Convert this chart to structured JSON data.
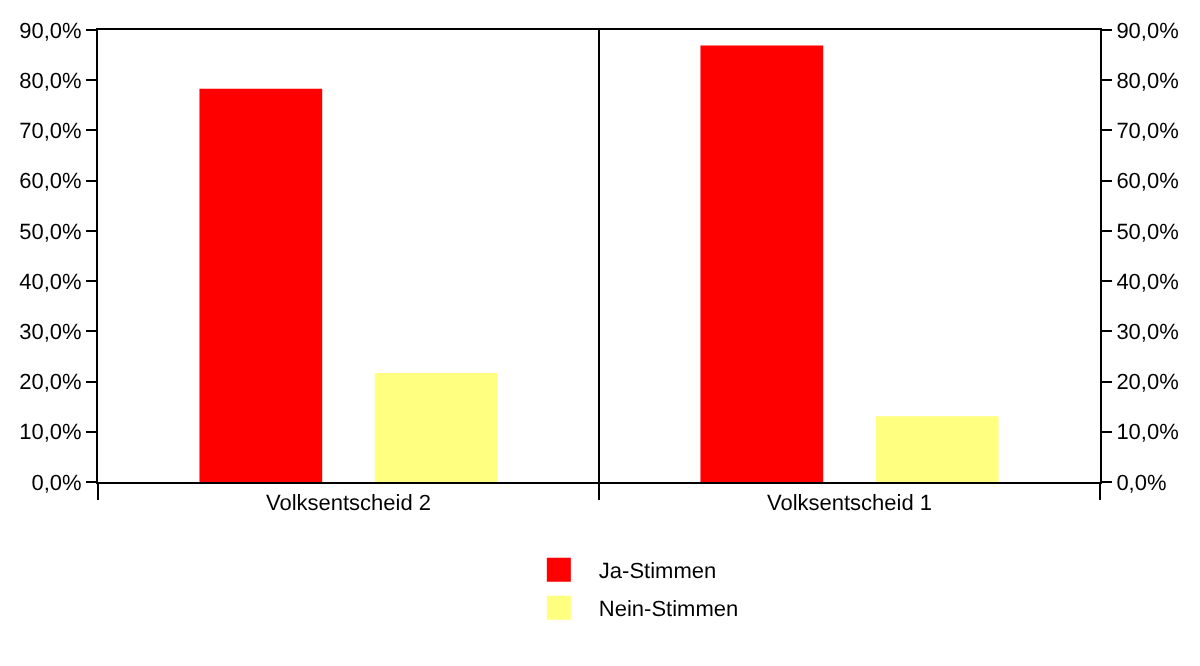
{
  "chart_data": {
    "type": "bar",
    "categories": [
      "Volksentscheid 2",
      "Volksentscheid 1"
    ],
    "series": [
      {
        "name": "Ja-Stimmen",
        "color": "#ff0000",
        "values": [
          78.3,
          86.9
        ]
      },
      {
        "name": "Nein-Stimmen",
        "color": "#ffff80",
        "values": [
          21.7,
          13.1
        ]
      }
    ],
    "ylim": [
      0,
      90
    ],
    "yticks": [
      {
        "value": 0,
        "label": "0,0%"
      },
      {
        "value": 10,
        "label": "10,0%"
      },
      {
        "value": 20,
        "label": "20,0%"
      },
      {
        "value": 30,
        "label": "30,0%"
      },
      {
        "value": 40,
        "label": "40,0%"
      },
      {
        "value": 50,
        "label": "50,0%"
      },
      {
        "value": 60,
        "label": "60,0%"
      },
      {
        "value": 70,
        "label": "70,0%"
      },
      {
        "value": 80,
        "label": "80,0%"
      },
      {
        "value": 90,
        "label": "90,0%"
      }
    ],
    "y2lim": [
      0,
      90
    ],
    "y2ticks": [
      {
        "value": 0,
        "label": "0,0%"
      },
      {
        "value": 10,
        "label": "10,0%"
      },
      {
        "value": 20,
        "label": "20,0%"
      },
      {
        "value": 30,
        "label": "30,0%"
      },
      {
        "value": 40,
        "label": "40,0%"
      },
      {
        "value": 50,
        "label": "50,0%"
      },
      {
        "value": 60,
        "label": "60,0%"
      },
      {
        "value": 70,
        "label": "70,0%"
      },
      {
        "value": 80,
        "label": "80,0%"
      },
      {
        "value": 90,
        "label": "90,0%"
      }
    ],
    "grid": "x",
    "legend": "bottom"
  }
}
